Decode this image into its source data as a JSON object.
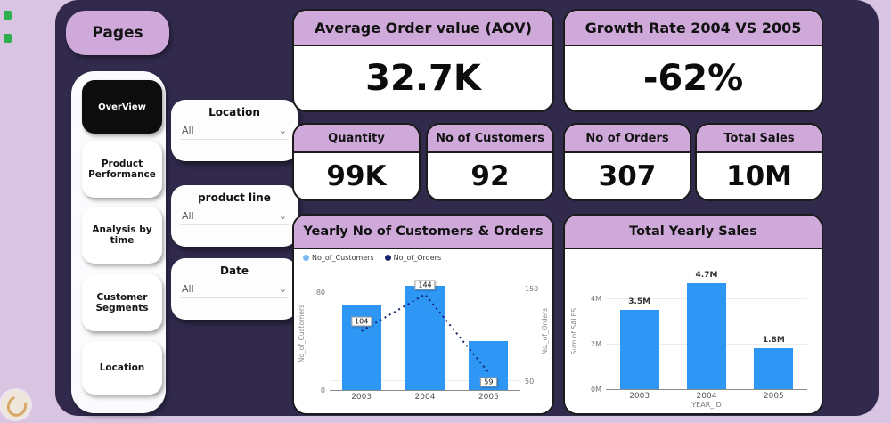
{
  "theme": {
    "frame": "#d9c4e1",
    "panel": "#322a4d",
    "header_band": "#cfa9da",
    "bar_blue": "#2e97f6",
    "line_navy": "#16246d"
  },
  "sidebar": {
    "title": "Pages",
    "items": [
      {
        "label": "OverView",
        "active": true
      },
      {
        "label": "Product Performance",
        "active": false
      },
      {
        "label": "Analysis by time",
        "active": false
      },
      {
        "label": "Customer Segments",
        "active": false
      },
      {
        "label": "Location",
        "active": false
      }
    ]
  },
  "slicers": [
    {
      "title": "Location",
      "value": "All"
    },
    {
      "title": "product line",
      "value": "All"
    },
    {
      "title": "Date",
      "value": "All"
    }
  ],
  "icons": {
    "chevron_down": "⌄"
  },
  "kpis": {
    "aov": {
      "title": "Average Order value (AOV)",
      "value": "32.7K"
    },
    "growth": {
      "title": "Growth Rate 2004 VS 2005",
      "value": "-62%"
    },
    "quantity": {
      "title": "Quantity",
      "value": "99K"
    },
    "customers": {
      "title": "No of Customers",
      "value": "92"
    },
    "orders": {
      "title": "No of Orders",
      "value": "307"
    },
    "total_sales": {
      "title": "Total Sales",
      "value": "10M"
    }
  },
  "chart_data": [
    {
      "type": "combo",
      "title": "Yearly No of Customers & Orders",
      "categories": [
        "2003",
        "2004",
        "2005"
      ],
      "series": [
        {
          "name": "No_of_Customers",
          "chart": "bar",
          "axis": "left",
          "values": [
            70,
            85,
            40
          ],
          "color": "#2e97f6",
          "legend_color": "#7db9f2"
        },
        {
          "name": "No_of_Orders",
          "chart": "line",
          "axis": "right",
          "values": [
            104,
            144,
            59
          ],
          "color": "#16246d"
        }
      ],
      "left_axis": {
        "label": "No_of_Customers",
        "ticks": [
          0,
          80
        ],
        "min": 0,
        "max": 90
      },
      "right_axis": {
        "label": "No._of_Orders",
        "ticks": [
          50,
          150
        ],
        "min": 40,
        "max": 160
      },
      "legend_position": "top-left",
      "grid": true
    },
    {
      "type": "bar",
      "title": "Total Yearly Sales",
      "categories": [
        "2003",
        "2004",
        "2005"
      ],
      "values": [
        3.5,
        4.7,
        1.8
      ],
      "bar_labels": [
        "3.5M",
        "4.7M",
        "1.8M"
      ],
      "xlabel": "YEAR_ID",
      "ylabel": "Sum of SALES",
      "yticks": [
        {
          "label": "0M",
          "value": 0
        },
        {
          "label": "2M",
          "value": 2
        },
        {
          "label": "4M",
          "value": 4
        }
      ],
      "ymin": 0,
      "ymax": 5,
      "bar_color": "#2e97f6",
      "grid": true
    }
  ]
}
